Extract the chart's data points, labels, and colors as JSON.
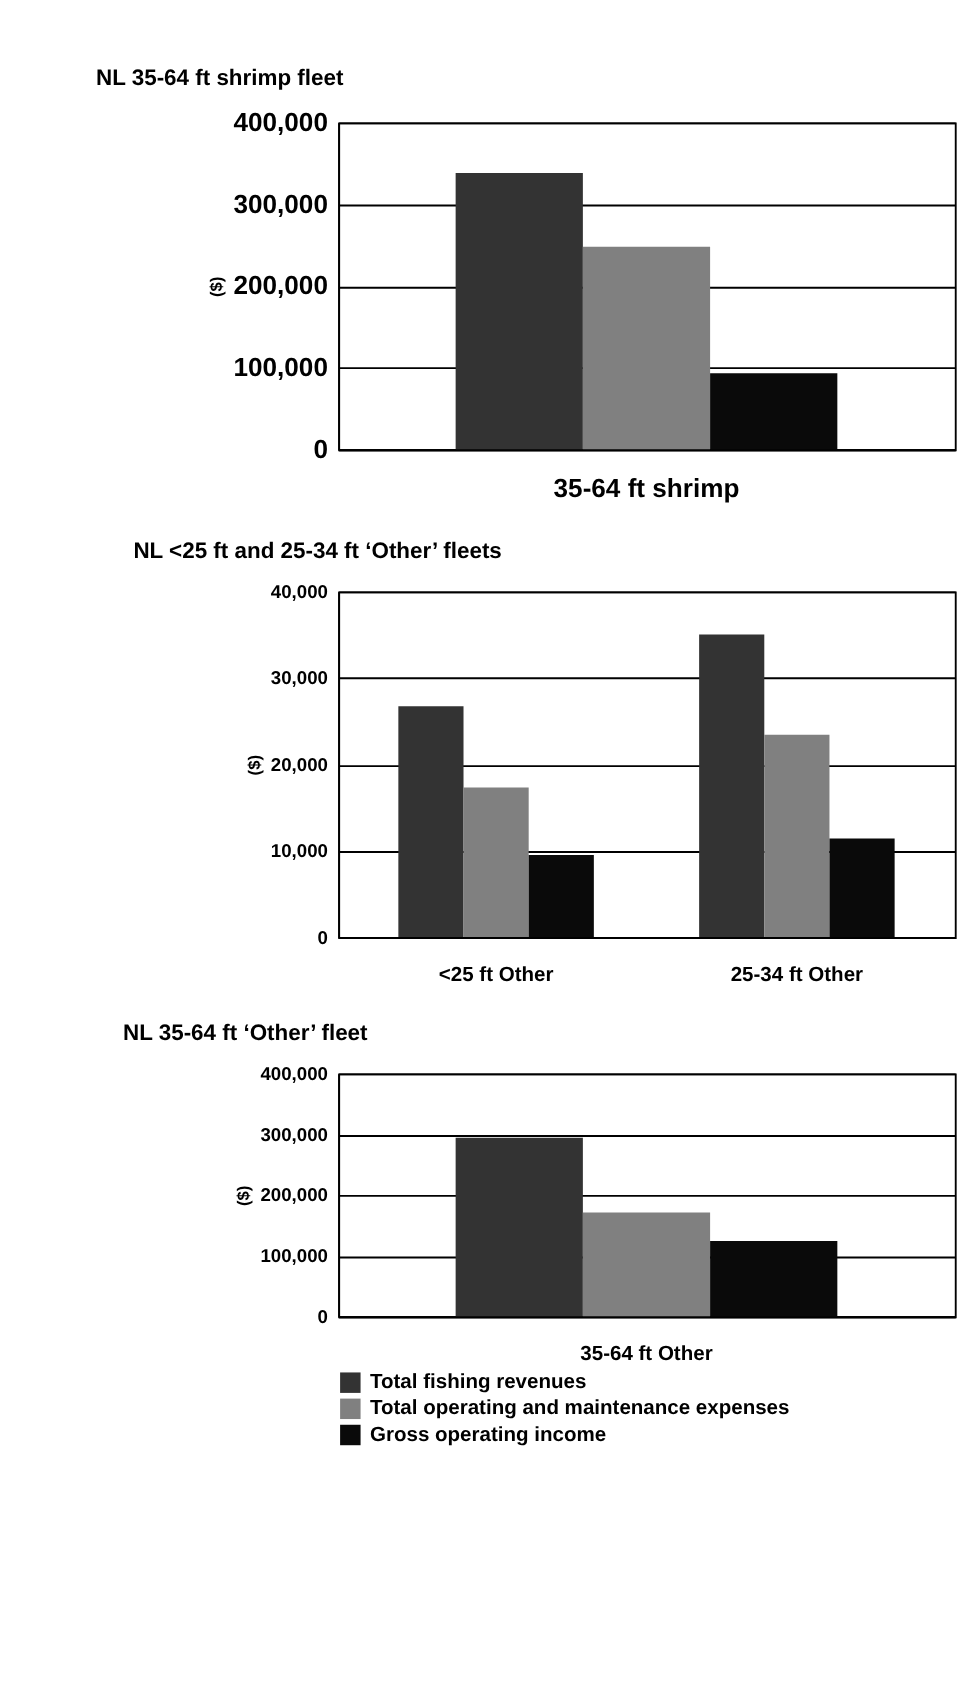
{
  "chart_data": [
    {
      "type": "bar",
      "title": "NL 35-64 ft shrimp fleet",
      "ylabel": "($)",
      "categories": [
        "35-64 ft shrimp"
      ],
      "ylim": [
        0,
        400000
      ],
      "yticks": [
        0,
        {
          "value": 100000,
          "label": "100,000"
        },
        {
          "value": 200000,
          "label": "200,000"
        },
        {
          "value": 300000,
          "label": "300,000"
        },
        {
          "value": 400000,
          "label": "400,000"
        }
      ],
      "grid": "y",
      "legend": false,
      "series": [
        {
          "color": "#333333",
          "values": [
            338000
          ]
        },
        {
          "color": "#808080",
          "values": [
            248000
          ]
        },
        {
          "color": "#0a0a0a",
          "values": [
            93000
          ]
        }
      ]
    },
    {
      "type": "bar",
      "title": "NL <25 ft  and 25-34 ft ‘Other’ fleets",
      "ylabel": "($)",
      "categories": [
        "<25 ft Other",
        "25-34 ft Other"
      ],
      "ylim": [
        0,
        40000
      ],
      "yticks": [
        0,
        {
          "value": 10000,
          "label": "10,000"
        },
        {
          "value": 20000,
          "label": "20,000"
        },
        {
          "value": 30000,
          "label": "30,000"
        },
        {
          "value": 40000,
          "label": "40,000"
        }
      ],
      "grid": "y",
      "legend": false,
      "series": [
        {
          "color": "#333333",
          "values": [
            26700,
            35000
          ]
        },
        {
          "color": "#808080",
          "values": [
            17300,
            23400
          ]
        },
        {
          "color": "#0a0a0a",
          "values": [
            9500,
            11400
          ]
        }
      ]
    },
    {
      "type": "bar",
      "title": "NL 35-64 ft  ‘Other’ fleet",
      "ylabel": "($)",
      "categories": [
        "35-64 ft Other"
      ],
      "ylim": [
        0,
        400000
      ],
      "yticks": [
        0,
        {
          "value": 100000,
          "label": "100,000"
        },
        {
          "value": 200000,
          "label": "200,000"
        },
        {
          "value": 300000,
          "label": "300,000"
        },
        {
          "value": 400000,
          "label": "400,000"
        }
      ],
      "grid": "y",
      "legend": "bottom",
      "series": [
        {
          "name": "Total fishing revenues",
          "color": "#333333",
          "values": [
            294000
          ]
        },
        {
          "name": "Total operating and maintenance expenses",
          "color": "#808080",
          "values": [
            171000
          ]
        },
        {
          "name": "Gross operating income",
          "color": "#0a0a0a",
          "values": [
            124000
          ]
        }
      ]
    }
  ]
}
